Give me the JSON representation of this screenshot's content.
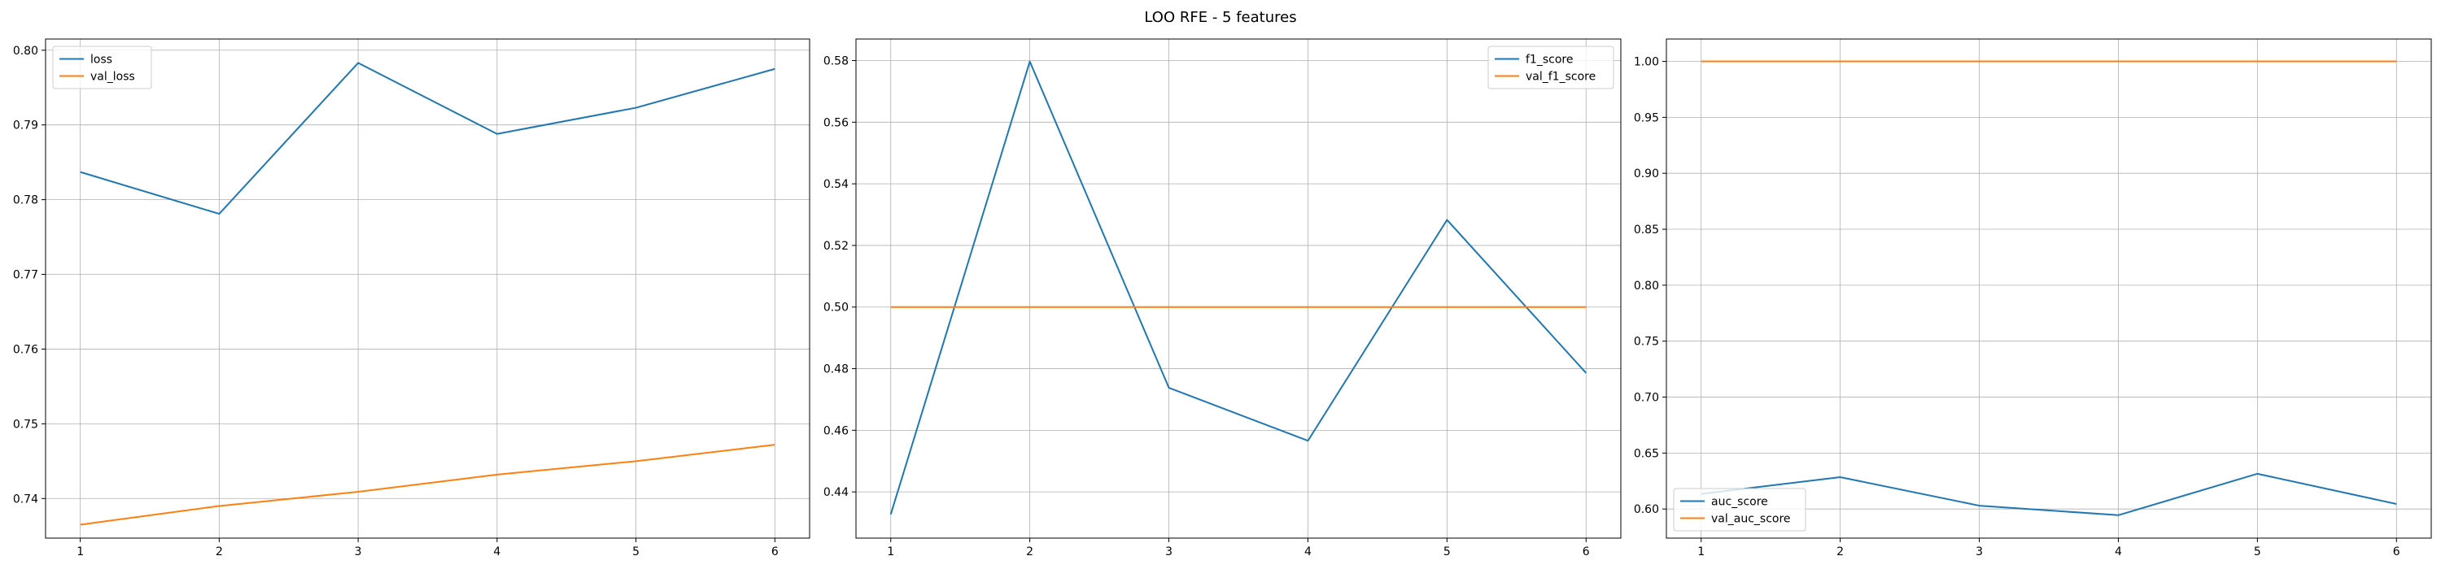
{
  "figure": {
    "suptitle": "LOO RFE - 5 features"
  },
  "chart_data": [
    {
      "type": "line",
      "title": "",
      "xlabel": "",
      "ylabel": "",
      "x": [
        1,
        2,
        3,
        4,
        5,
        6
      ],
      "xlim": [
        0.75,
        6.25
      ],
      "ylim": [
        0.7347,
        0.8015
      ],
      "yticks": [
        0.74,
        0.75,
        0.76,
        0.77,
        0.78,
        0.79,
        0.8
      ],
      "ytick_decimals": 2,
      "grid": true,
      "legend_position": "top-left",
      "series": [
        {
          "name": "loss",
          "color": "#1f77b4",
          "values": [
            0.7837,
            0.7781,
            0.7983,
            0.7888,
            0.7923,
            0.7975
          ]
        },
        {
          "name": "val_loss",
          "color": "#ff7f0e",
          "values": [
            0.7365,
            0.739,
            0.7409,
            0.7432,
            0.745,
            0.7472
          ]
        }
      ]
    },
    {
      "type": "line",
      "title": "",
      "xlabel": "",
      "ylabel": "",
      "x": [
        1,
        2,
        3,
        4,
        5,
        6
      ],
      "xlim": [
        0.75,
        6.25
      ],
      "ylim": [
        0.425,
        0.587
      ],
      "yticks": [
        0.44,
        0.46,
        0.48,
        0.5,
        0.52,
        0.54,
        0.56,
        0.58
      ],
      "ytick_decimals": 2,
      "grid": true,
      "legend_position": "top-right",
      "series": [
        {
          "name": "f1_score",
          "color": "#1f77b4",
          "values": [
            0.4327,
            0.5797,
            0.4738,
            0.4566,
            0.5283,
            0.4786
          ]
        },
        {
          "name": "val_f1_score",
          "color": "#ff7f0e",
          "values": [
            0.5,
            0.5,
            0.5,
            0.5,
            0.5,
            0.5
          ]
        }
      ]
    },
    {
      "type": "line",
      "title": "",
      "xlabel": "",
      "ylabel": "",
      "x": [
        1,
        2,
        3,
        4,
        5,
        6
      ],
      "xlim": [
        0.75,
        6.25
      ],
      "ylim": [
        0.574,
        1.02
      ],
      "yticks": [
        0.6,
        0.65,
        0.7,
        0.75,
        0.8,
        0.85,
        0.9,
        0.95,
        1.0
      ],
      "ytick_decimals": 2,
      "grid": true,
      "legend_position": "bottom-left",
      "series": [
        {
          "name": "auc_score",
          "color": "#1f77b4",
          "values": [
            0.6135,
            0.6285,
            0.603,
            0.5945,
            0.6315,
            0.6045
          ]
        },
        {
          "name": "val_auc_score",
          "color": "#ff7f0e",
          "values": [
            1.0,
            1.0,
            1.0,
            1.0,
            1.0,
            1.0
          ]
        }
      ]
    }
  ]
}
